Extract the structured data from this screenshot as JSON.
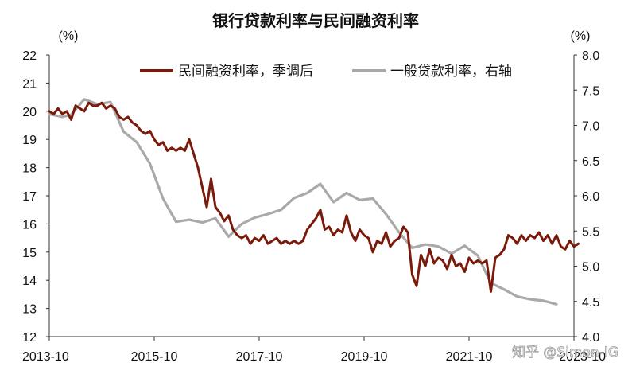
{
  "chart_data": {
    "type": "line",
    "title": "银行贷款利率与民间融资利率",
    "left_axis": {
      "unit": "(%)",
      "ylim": [
        12,
        22
      ],
      "ticks": [
        "12",
        "13",
        "14",
        "15",
        "16",
        "17",
        "18",
        "19",
        "20",
        "21",
        "22"
      ]
    },
    "right_axis": {
      "unit": "(%)",
      "ylim": [
        4.0,
        8.0
      ],
      "ticks": [
        "4.0",
        "4.5",
        "5.0",
        "5.5",
        "6.0",
        "6.5",
        "7.0",
        "7.5",
        "8.0"
      ]
    },
    "x_ticks": [
      "2013-10",
      "2015-10",
      "2017-10",
      "2019-10",
      "2021-10",
      "2023-10"
    ],
    "grid": false,
    "legend_position": "top",
    "series": [
      {
        "name": "民间融资利率，季调后",
        "axis": "left",
        "color": "#7B1A0A",
        "x": [
          "2013-10",
          "2013-11",
          "2013-12",
          "2014-01",
          "2014-02",
          "2014-03",
          "2014-04",
          "2014-05",
          "2014-06",
          "2014-07",
          "2014-08",
          "2014-09",
          "2014-10",
          "2014-11",
          "2014-12",
          "2015-01",
          "2015-02",
          "2015-03",
          "2015-04",
          "2015-05",
          "2015-06",
          "2015-07",
          "2015-08",
          "2015-09",
          "2015-10",
          "2015-11",
          "2015-12",
          "2016-01",
          "2016-02",
          "2016-03",
          "2016-04",
          "2016-05",
          "2016-06",
          "2016-07",
          "2016-08",
          "2016-09",
          "2016-10",
          "2016-11",
          "2016-12",
          "2017-01",
          "2017-02",
          "2017-03",
          "2017-04",
          "2017-05",
          "2017-06",
          "2017-07",
          "2017-08",
          "2017-09",
          "2017-10",
          "2017-11",
          "2017-12",
          "2018-01",
          "2018-02",
          "2018-03",
          "2018-04",
          "2018-05",
          "2018-06",
          "2018-07",
          "2018-08",
          "2018-09",
          "2018-10",
          "2018-11",
          "2018-12",
          "2019-01",
          "2019-02",
          "2019-03",
          "2019-04",
          "2019-05",
          "2019-06",
          "2019-07",
          "2019-08",
          "2019-09",
          "2019-10",
          "2019-11",
          "2019-12",
          "2020-01",
          "2020-02",
          "2020-03",
          "2020-04",
          "2020-05",
          "2020-06",
          "2020-07",
          "2020-08",
          "2020-09",
          "2020-10",
          "2020-11",
          "2020-12",
          "2021-01",
          "2021-02",
          "2021-03",
          "2021-04",
          "2021-05",
          "2021-06",
          "2021-07",
          "2021-08",
          "2021-09",
          "2021-10",
          "2021-11",
          "2021-12",
          "2022-01",
          "2022-02",
          "2022-03",
          "2022-04",
          "2022-05",
          "2022-06",
          "2022-07",
          "2022-08",
          "2022-09",
          "2022-10",
          "2022-11",
          "2022-12",
          "2023-01",
          "2023-02",
          "2023-03",
          "2023-04",
          "2023-05",
          "2023-06",
          "2023-07",
          "2023-08",
          "2023-09",
          "2023-10",
          "2023-11"
        ],
        "values": [
          20.0,
          19.9,
          20.1,
          19.9,
          20.0,
          19.7,
          20.2,
          20.1,
          20.0,
          20.3,
          20.2,
          20.2,
          20.3,
          20.1,
          20.2,
          20.1,
          19.8,
          19.7,
          19.8,
          19.6,
          19.5,
          19.3,
          19.2,
          19.3,
          19.0,
          18.8,
          18.9,
          18.6,
          18.7,
          18.6,
          18.7,
          18.6,
          19.0,
          18.5,
          18.0,
          17.3,
          16.6,
          17.6,
          16.6,
          16.4,
          16.1,
          16.3,
          15.8,
          15.6,
          15.5,
          15.6,
          15.3,
          15.5,
          15.4,
          15.6,
          15.3,
          15.4,
          15.5,
          15.3,
          15.4,
          15.3,
          15.4,
          15.3,
          15.4,
          15.8,
          16.0,
          16.2,
          16.5,
          15.8,
          15.9,
          15.6,
          15.8,
          15.7,
          16.3,
          15.7,
          15.4,
          15.8,
          15.6,
          15.5,
          15.0,
          15.4,
          15.3,
          15.7,
          15.2,
          15.4,
          15.5,
          15.9,
          15.7,
          14.2,
          13.8,
          14.9,
          14.5,
          15.1,
          14.6,
          14.8,
          14.7,
          14.4,
          14.9,
          14.5,
          14.6,
          14.3,
          14.8,
          14.6,
          14.7,
          14.6,
          14.7,
          13.6,
          14.8,
          14.9,
          15.1,
          15.6,
          15.5,
          15.3,
          15.6,
          15.4,
          15.6,
          15.5,
          15.7,
          15.4,
          15.6,
          15.3,
          15.6,
          15.2,
          15.1,
          15.4,
          15.2,
          15.3
        ]
      },
      {
        "name": "一般贷款利率，右轴",
        "axis": "right",
        "color": "#A9A9A9",
        "x": [
          "2013-10",
          "2014-01",
          "2014-03",
          "2014-06",
          "2014-09",
          "2014-12",
          "2015-03",
          "2015-06",
          "2015-09",
          "2015-12",
          "2016-03",
          "2016-06",
          "2016-09",
          "2016-12",
          "2017-03",
          "2017-06",
          "2017-09",
          "2017-12",
          "2018-03",
          "2018-06",
          "2018-09",
          "2018-12",
          "2019-03",
          "2019-06",
          "2019-09",
          "2019-12",
          "2020-03",
          "2020-06",
          "2020-09",
          "2020-12",
          "2021-03",
          "2021-06",
          "2021-09",
          "2021-12",
          "2022-03",
          "2022-06",
          "2022-09",
          "2022-12",
          "2023-03",
          "2023-06"
        ],
        "values": [
          7.16,
          7.12,
          7.15,
          7.37,
          7.3,
          7.33,
          6.91,
          6.76,
          6.46,
          5.96,
          5.63,
          5.66,
          5.62,
          5.68,
          5.42,
          5.6,
          5.69,
          5.74,
          5.8,
          5.97,
          6.04,
          6.17,
          5.91,
          6.04,
          5.94,
          5.96,
          5.74,
          5.48,
          5.26,
          5.31,
          5.28,
          5.18,
          5.29,
          5.15,
          4.76,
          4.67,
          4.57,
          4.53,
          4.51,
          4.46
        ]
      }
    ]
  },
  "watermark": "知乎 @Simon-IG"
}
